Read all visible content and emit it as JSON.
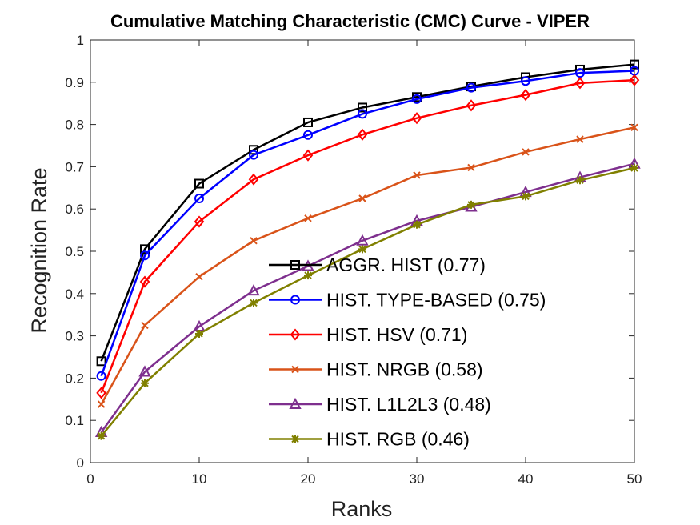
{
  "chart_data": {
    "type": "line",
    "title": "Cumulative Matching Characteristic (CMC) Curve - VIPER",
    "xlabel": "Ranks",
    "ylabel": "Recognition Rate",
    "xlim": [
      0,
      50
    ],
    "ylim": [
      0,
      1
    ],
    "xticks": [
      "0",
      "10",
      "20",
      "30",
      "40",
      "50"
    ],
    "yticks": [
      "0",
      "0.1",
      "0.2",
      "0.3",
      "0.4",
      "0.5",
      "0.6",
      "0.7",
      "0.8",
      "0.9",
      "1"
    ],
    "legend_position": "lower-right",
    "grid": false,
    "x": [
      1,
      5,
      10,
      15,
      20,
      25,
      30,
      35,
      40,
      45,
      50
    ],
    "series": [
      {
        "name": "AGGR. HIST (0.77)",
        "color": "#000000",
        "marker": "square",
        "values": [
          0.24,
          0.505,
          0.66,
          0.74,
          0.805,
          0.84,
          0.865,
          0.89,
          0.912,
          0.93,
          0.942
        ]
      },
      {
        "name": "HIST. TYPE-BASED (0.75)",
        "color": "#0000ff",
        "marker": "circle",
        "values": [
          0.205,
          0.49,
          0.625,
          0.728,
          0.775,
          0.825,
          0.86,
          0.887,
          0.903,
          0.922,
          0.927
        ]
      },
      {
        "name": "HIST. HSV (0.71)",
        "color": "#ff0000",
        "marker": "diamond",
        "values": [
          0.165,
          0.428,
          0.57,
          0.67,
          0.727,
          0.776,
          0.815,
          0.845,
          0.87,
          0.898,
          0.905
        ]
      },
      {
        "name": "HIST. NRGB (0.58)",
        "color": "#d95319",
        "marker": "x",
        "values": [
          0.138,
          0.325,
          0.44,
          0.525,
          0.578,
          0.625,
          0.68,
          0.698,
          0.735,
          0.765,
          0.793
        ]
      },
      {
        "name": "HIST. L1L2L3 (0.48)",
        "color": "#7e2f8e",
        "marker": "triangle",
        "values": [
          0.072,
          0.215,
          0.322,
          0.407,
          0.465,
          0.525,
          0.572,
          0.605,
          0.64,
          0.675,
          0.707
        ]
      },
      {
        "name": "HIST. RGB (0.46)",
        "color": "#808000",
        "marker": "star",
        "values": [
          0.063,
          0.188,
          0.305,
          0.378,
          0.443,
          0.505,
          0.563,
          0.61,
          0.63,
          0.668,
          0.697
        ]
      }
    ]
  }
}
